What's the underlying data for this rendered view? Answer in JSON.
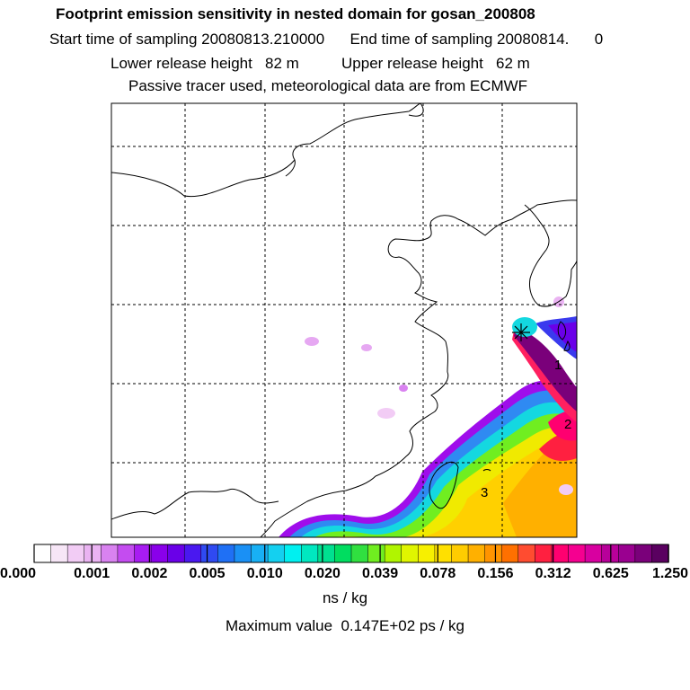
{
  "header": {
    "title": "Footprint emission sensitivity in nested domain for gosan_200808",
    "sampling_line": "Start time of sampling 20080813.210000      End time of sampling 20080814.      0",
    "release_line": "Lower release height   82 m          Upper release height   62 m",
    "tracer_line": "Passive tracer used, meteorological data are from ECMWF"
  },
  "map": {
    "region_labels": [
      "1",
      "2",
      "3"
    ],
    "release_marker": "release-site-cross"
  },
  "legend": {
    "tick_labels": [
      "0.000",
      "0.001",
      "0.002",
      "0.005",
      "0.010",
      "0.020",
      "0.039",
      "0.078",
      "0.156",
      "0.312",
      "0.625",
      "1.250"
    ],
    "colors": [
      "#ffffff",
      "#f7e6f7",
      "#f2ccf5",
      "#eab3f2",
      "#d982f0",
      "#c44cf0",
      "#a81cf2",
      "#8a00ea",
      "#6a00e8",
      "#4a18f0",
      "#2f4af2",
      "#1f70f5",
      "#1a90f5",
      "#18b0f5",
      "#14d0f0",
      "#00f0f0",
      "#00e8c0",
      "#00e090",
      "#00dd60",
      "#30e040",
      "#70ee20",
      "#b0f500",
      "#e0f500",
      "#f7f000",
      "#ffe000",
      "#ffcc00",
      "#ffb000",
      "#ff9400",
      "#ff7000",
      "#ff4c30",
      "#ff2040",
      "#ff0070",
      "#f50090",
      "#d800a0",
      "#b8009a",
      "#9a0090",
      "#7a007a",
      "#5a0060"
    ],
    "unit": "ns / kg"
  },
  "footer": {
    "max_value": "Maximum value  0.147E+02 ps / kg"
  }
}
